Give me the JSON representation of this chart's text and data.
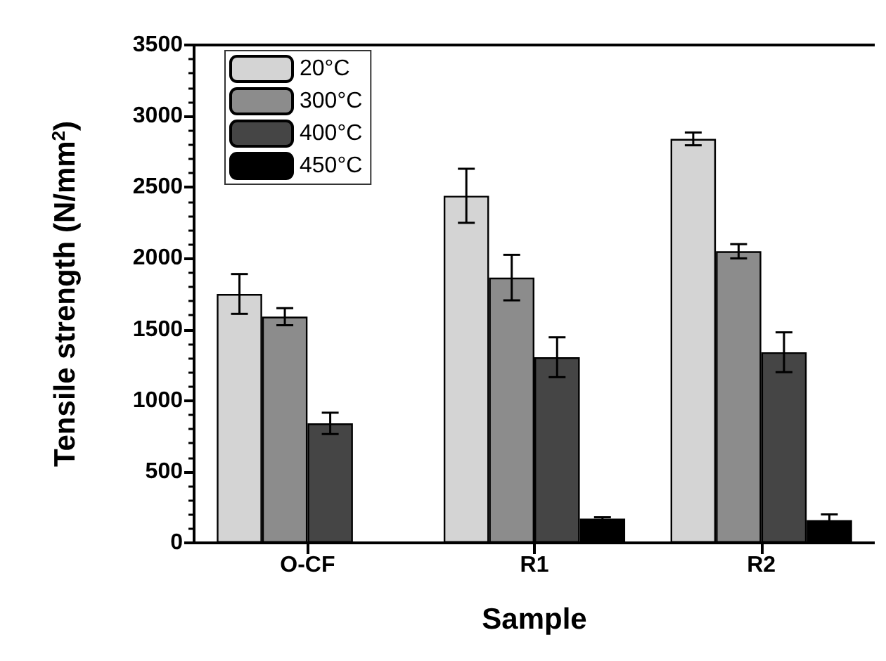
{
  "chart_data": {
    "type": "bar",
    "xlabel": "Sample",
    "ylabel": "Tensile strength (N/mm$^{2}$)",
    "categories": [
      "O-CF",
      "R1",
      "R2"
    ],
    "series": [
      {
        "name": "20°C",
        "color": "#d4d4d4",
        "values": [
          1750,
          2440,
          2840
        ],
        "errors": [
          140,
          190,
          45
        ]
      },
      {
        "name": "300°C",
        "color": "#8c8c8c",
        "values": [
          1590,
          1865,
          2050
        ],
        "errors": [
          60,
          160,
          50
        ]
      },
      {
        "name": "400°C",
        "color": "#454545",
        "values": [
          840,
          1305,
          1340
        ],
        "errors": [
          75,
          140,
          140
        ]
      },
      {
        "name": "450°C",
        "color": "#000000",
        "values": [
          null,
          170,
          160
        ],
        "errors": [
          null,
          10,
          40
        ]
      }
    ],
    "ylim": [
      0,
      3500
    ],
    "yticks": [
      0,
      500,
      1000,
      1500,
      2000,
      2500,
      3000,
      3500
    ],
    "grid": false,
    "legend": "top left"
  }
}
